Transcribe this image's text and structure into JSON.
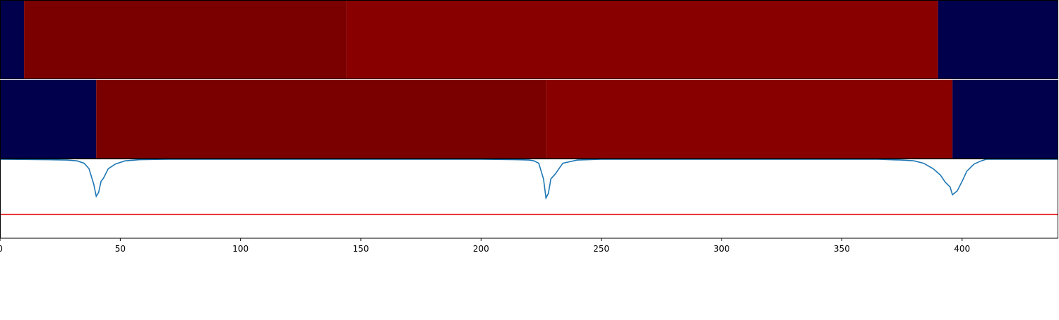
{
  "chart_data": {
    "type": "heatmap",
    "xlim": [
      0,
      440
    ],
    "x_ticks": [
      "0",
      "50",
      "100",
      "150",
      "200",
      "250",
      "300",
      "350",
      "400"
    ],
    "x_tick_values": [
      0,
      50,
      100,
      150,
      200,
      250,
      300,
      350,
      400
    ],
    "colors": {
      "background": "#00004c",
      "segment_dark": "#7a0000",
      "segment_mid": "#880000",
      "line": "#1f77b4",
      "threshold": "#e31a1c"
    },
    "tracks": [
      {
        "segments": [
          {
            "start": 0,
            "end": 10,
            "level": "background"
          },
          {
            "start": 10,
            "end": 144,
            "level": "segment_dark"
          },
          {
            "start": 144,
            "end": 390,
            "level": "segment_mid"
          },
          {
            "start": 390,
            "end": 440,
            "level": "background"
          }
        ]
      },
      {
        "segments": [
          {
            "start": 0,
            "end": 40,
            "level": "background"
          },
          {
            "start": 40,
            "end": 227,
            "level": "segment_dark"
          },
          {
            "start": 227,
            "end": 396,
            "level": "segment_mid"
          },
          {
            "start": 396,
            "end": 440,
            "level": "background"
          }
        ]
      }
    ],
    "line_panel": {
      "ylim": [
        0,
        1
      ],
      "threshold": 0.3,
      "series": {
        "x": [
          0,
          20,
          28,
          32,
          35,
          37,
          38,
          39,
          40,
          41,
          42,
          43,
          45,
          48,
          52,
          58,
          70,
          200,
          215,
          220,
          222,
          224,
          225,
          226,
          227,
          228,
          229,
          231,
          234,
          240,
          250,
          365,
          375,
          380,
          384,
          388,
          391,
          393,
          395,
          396,
          398,
          400,
          402,
          405,
          408,
          410,
          440
        ],
        "y": [
          1.0,
          0.995,
          0.99,
          0.98,
          0.95,
          0.88,
          0.78,
          0.68,
          0.53,
          0.58,
          0.72,
          0.76,
          0.88,
          0.94,
          0.98,
          0.995,
          1.0,
          1.0,
          0.995,
          0.99,
          0.98,
          0.95,
          0.85,
          0.75,
          0.51,
          0.57,
          0.75,
          0.82,
          0.95,
          0.99,
          1.0,
          1.0,
          0.99,
          0.98,
          0.95,
          0.88,
          0.8,
          0.71,
          0.65,
          0.55,
          0.6,
          0.72,
          0.85,
          0.94,
          0.98,
          1.0,
          1.0
        ]
      }
    }
  }
}
